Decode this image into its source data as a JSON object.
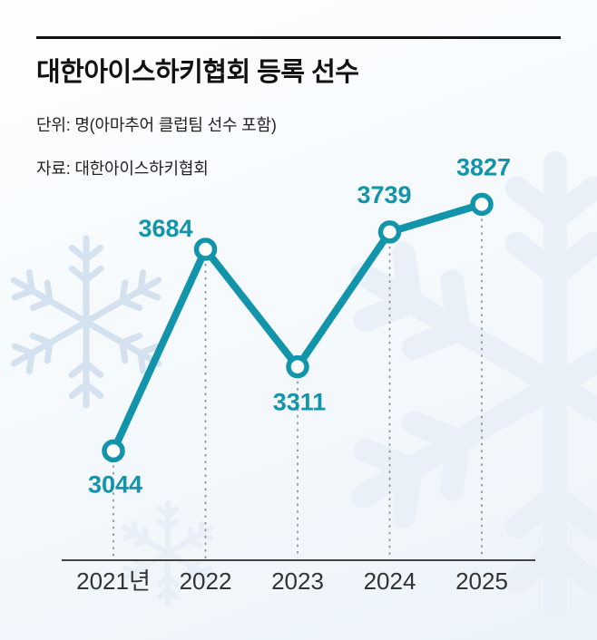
{
  "header": {
    "title": "대한아이스하키협회 등록 선수",
    "unit": "단위: 명(아마추어 클럽팀 선수 포함)",
    "source": "자료: 대한아이스하키협회"
  },
  "chart_data": {
    "type": "line",
    "title": "대한아이스하키협회 등록 선수",
    "categories": [
      "2021년",
      "2022",
      "2023",
      "2024",
      "2025"
    ],
    "values": [
      3044,
      3684,
      3311,
      3739,
      3827
    ],
    "label_positions": [
      "below",
      "above",
      "below",
      "above",
      "above"
    ],
    "ylim": [
      2950,
      3900
    ],
    "xlabel": "",
    "ylabel": "명",
    "grid": "dotted-vertical-guides",
    "legend": "none",
    "line_color": "#1295ab",
    "marker_style": "open-circle"
  },
  "colors": {
    "accent": "#1295ab",
    "title_text": "#111111",
    "axis_text": "#333333",
    "background_top": "#fdfeff",
    "background_bottom": "#ecf3f9",
    "snowflake": "#cfdeed"
  }
}
